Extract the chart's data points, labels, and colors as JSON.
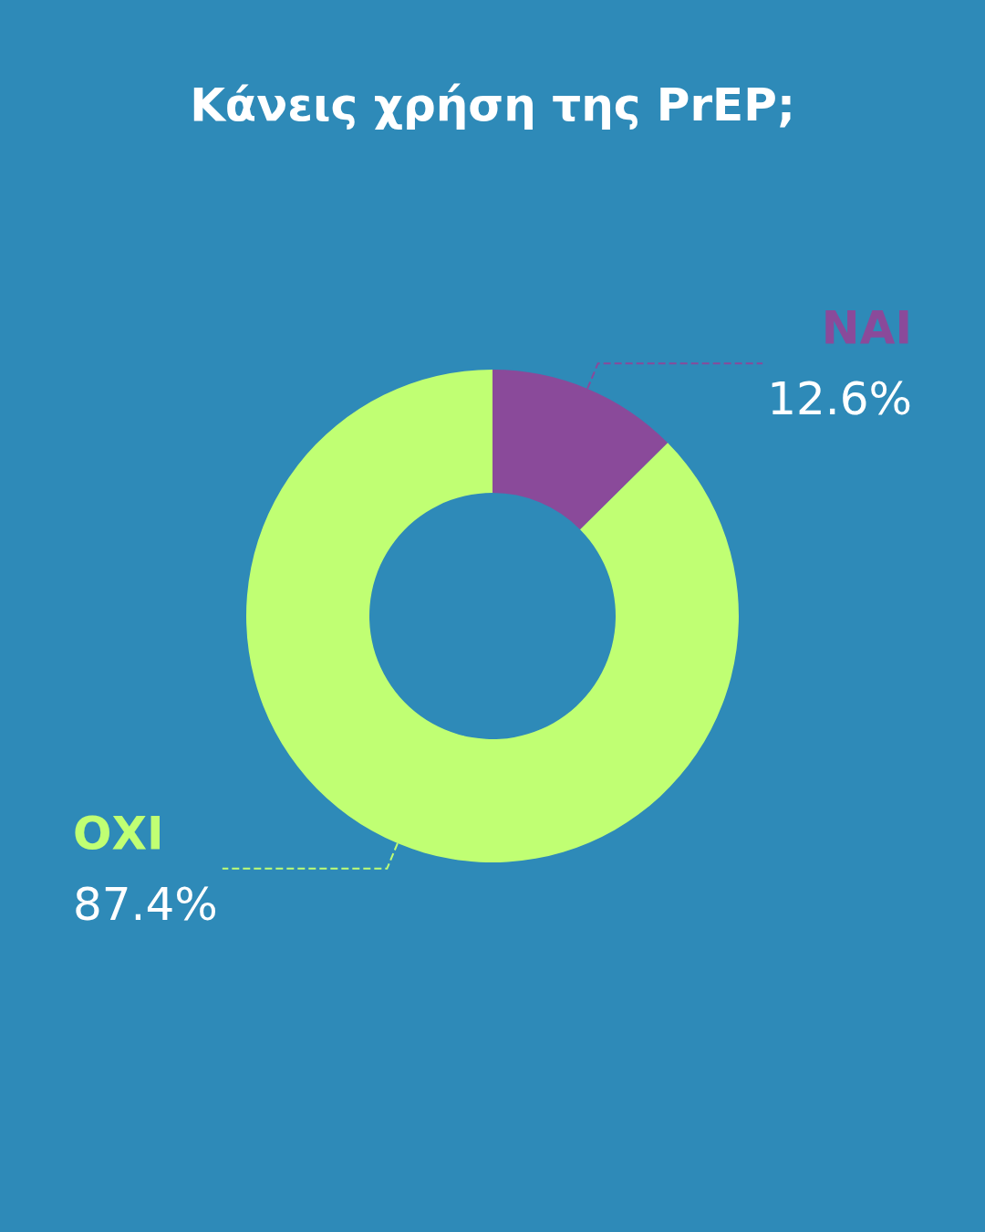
{
  "chart_data": {
    "type": "donut",
    "title": "Κάνεις χρήση της PrEP;",
    "categories": [
      "ΝΑΙ",
      "ΟΧΙ"
    ],
    "values": [
      12.6,
      87.4
    ],
    "colors": [
      "#8a4a9a",
      "#c0ff73"
    ],
    "value_labels": [
      "12.6%",
      "87.4%"
    ],
    "legend": false
  }
}
